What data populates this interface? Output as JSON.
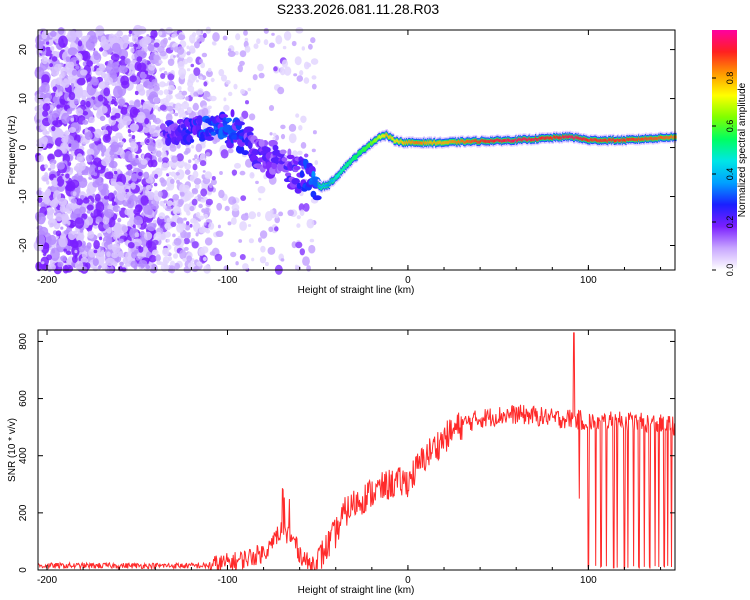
{
  "title": "S233.2026.081.11.28.R03",
  "chart_data": [
    {
      "type": "heatmap",
      "name": "spectrogram",
      "title": "S233.2026.081.11.28.R03",
      "xlabel": "Height of straight line (km)",
      "ylabel": "Frequency (Hz)",
      "xlim": [
        -205,
        148
      ],
      "ylim": [
        -25,
        24
      ],
      "xticks": [
        -200,
        -100,
        0,
        100
      ],
      "xtick_labels": [
        "-200",
        "-100",
        "0",
        "100"
      ],
      "yticks": [
        -20,
        -10,
        0,
        10,
        20
      ],
      "ytick_labels": [
        "-20",
        "-10",
        "0",
        "10",
        "20"
      ],
      "ridge": {
        "x": [
          -135,
          -120,
          -110,
          -100,
          -92,
          -85,
          -75,
          -65,
          -58,
          -52,
          -48,
          -44,
          -40,
          -34,
          -28,
          -22,
          -16,
          -12,
          -8,
          -2,
          5,
          12,
          20,
          30,
          40,
          60,
          80,
          90,
          100,
          120,
          148
        ],
        "y": [
          3,
          3.5,
          4,
          4.5,
          2,
          0,
          -2.5,
          -4.5,
          -6,
          -7.5,
          -8,
          -7.5,
          -6,
          -3.5,
          -1.5,
          0.5,
          2.2,
          2.5,
          1.5,
          1,
          1,
          1,
          1,
          1.2,
          1.3,
          1.5,
          2,
          2.2,
          1.5,
          1.5,
          2.2
        ],
        "amplitude": [
          0.2,
          0.25,
          0.28,
          0.3,
          0.25,
          0.2,
          0.18,
          0.2,
          0.25,
          0.3,
          0.4,
          0.35,
          0.45,
          0.5,
          0.55,
          0.6,
          0.7,
          0.8,
          0.75,
          0.8,
          0.85,
          0.8,
          0.8,
          0.85,
          0.9,
          0.95,
          0.9,
          0.95,
          0.9,
          0.9,
          0.85
        ]
      },
      "noise_regions": [
        {
          "x": [
            -205,
            -140
          ],
          "density": "high",
          "color": "purple"
        },
        {
          "x": [
            -140,
            -110
          ],
          "density": "medium",
          "color": "light-purple"
        },
        {
          "x": [
            -110,
            -50
          ],
          "density": "low",
          "color": "light-purple"
        }
      ]
    },
    {
      "type": "colorbar",
      "name": "colorbar",
      "label": "Normalized spectral amplitude",
      "range": [
        0,
        1
      ],
      "ticks": [
        0.0,
        0.2,
        0.4,
        0.6,
        0.8
      ],
      "tick_labels": [
        "0.0",
        "0.2",
        "0.4",
        "0.6",
        "0.8"
      ],
      "colormap": [
        "#ffffff",
        "#c8a6ff",
        "#7a1fff",
        "#1a20ff",
        "#00a0ff",
        "#00e6e6",
        "#00ff60",
        "#80ff00",
        "#ffff00",
        "#ff9900",
        "#ff2020",
        "#ff00a0"
      ]
    },
    {
      "type": "line",
      "name": "snr",
      "xlabel": "Height of straight line (km)",
      "ylabel": "SNR (10 * v/v)",
      "xlim": [
        -205,
        148
      ],
      "ylim": [
        0,
        840
      ],
      "xticks": [
        -200,
        -100,
        0,
        100
      ],
      "xtick_labels": [
        "-200",
        "-100",
        "0",
        "100"
      ],
      "yticks": [
        0,
        200,
        400,
        600,
        800
      ],
      "ytick_labels": [
        "0",
        "200",
        "400",
        "600",
        "800"
      ],
      "color": "#ff2a2a",
      "trend": {
        "x": [
          -205,
          -110,
          -95,
          -80,
          -70,
          -65,
          -60,
          -55,
          -50,
          -45,
          -40,
          -35,
          -30,
          -20,
          -10,
          0,
          10,
          20,
          30,
          40,
          50,
          60,
          70,
          80,
          90,
          100,
          110,
          120,
          130,
          140,
          148
        ],
        "y": [
          15,
          15,
          30,
          60,
          140,
          120,
          60,
          20,
          30,
          80,
          130,
          200,
          230,
          270,
          300,
          310,
          400,
          460,
          510,
          530,
          540,
          545,
          540,
          530,
          530,
          520,
          520,
          520,
          515,
          510,
          505
        ]
      },
      "spikes": [
        {
          "x": 92,
          "y": 830
        },
        {
          "x": 77,
          "y": 520
        },
        {
          "x": 95,
          "y": 250
        }
      ],
      "dropouts_x": [
        95,
        100,
        104,
        107,
        110,
        114,
        116,
        120,
        122,
        125,
        128,
        131,
        134,
        137,
        139,
        142,
        144,
        146
      ]
    }
  ]
}
